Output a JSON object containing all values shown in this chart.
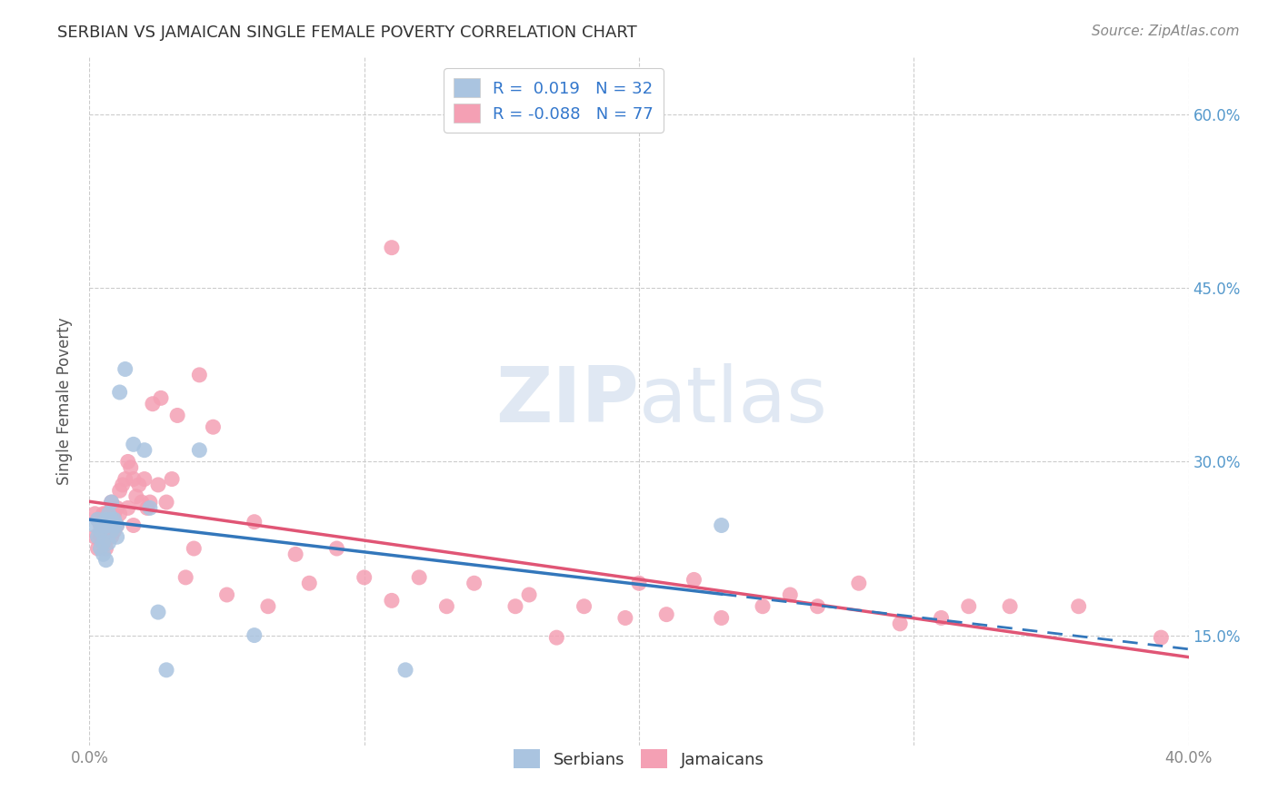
{
  "title": "SERBIAN VS JAMAICAN SINGLE FEMALE POVERTY CORRELATION CHART",
  "source": "Source: ZipAtlas.com",
  "ylabel": "Single Female Poverty",
  "ytick_values": [
    0.15,
    0.3,
    0.45,
    0.6
  ],
  "ytick_labels": [
    "15.0%",
    "30.0%",
    "45.0%",
    "60.0%"
  ],
  "xlim": [
    0.0,
    0.4
  ],
  "ylim": [
    0.055,
    0.65
  ],
  "watermark": "ZIPatlas",
  "legend_r1": "R =  0.019",
  "legend_n1": "N = 32",
  "legend_r2": "R = -0.088",
  "legend_n2": "N = 77",
  "serbian_color": "#aac4e0",
  "jamaican_color": "#f4a0b4",
  "serbian_line_color": "#3377bb",
  "jamaican_line_color": "#e05575",
  "background_color": "#ffffff",
  "grid_color": "#cccccc",
  "serbian_x": [
    0.002,
    0.003,
    0.003,
    0.004,
    0.004,
    0.005,
    0.005,
    0.005,
    0.006,
    0.006,
    0.006,
    0.007,
    0.007,
    0.007,
    0.008,
    0.008,
    0.008,
    0.009,
    0.009,
    0.01,
    0.01,
    0.011,
    0.013,
    0.016,
    0.02,
    0.022,
    0.025,
    0.028,
    0.04,
    0.06,
    0.115,
    0.23
  ],
  "serbian_y": [
    0.245,
    0.25,
    0.235,
    0.24,
    0.225,
    0.245,
    0.23,
    0.22,
    0.25,
    0.245,
    0.215,
    0.255,
    0.245,
    0.23,
    0.265,
    0.25,
    0.24,
    0.25,
    0.245,
    0.245,
    0.235,
    0.36,
    0.38,
    0.315,
    0.31,
    0.26,
    0.17,
    0.12,
    0.31,
    0.15,
    0.12,
    0.245
  ],
  "jamaican_x": [
    0.002,
    0.002,
    0.003,
    0.003,
    0.004,
    0.004,
    0.005,
    0.005,
    0.005,
    0.006,
    0.006,
    0.006,
    0.007,
    0.007,
    0.008,
    0.008,
    0.008,
    0.009,
    0.009,
    0.01,
    0.01,
    0.011,
    0.011,
    0.012,
    0.013,
    0.014,
    0.014,
    0.015,
    0.016,
    0.016,
    0.017,
    0.018,
    0.019,
    0.02,
    0.021,
    0.022,
    0.023,
    0.025,
    0.026,
    0.028,
    0.03,
    0.032,
    0.035,
    0.038,
    0.04,
    0.045,
    0.05,
    0.06,
    0.065,
    0.075,
    0.08,
    0.09,
    0.1,
    0.11,
    0.11,
    0.12,
    0.13,
    0.14,
    0.155,
    0.16,
    0.17,
    0.18,
    0.195,
    0.2,
    0.21,
    0.22,
    0.23,
    0.245,
    0.255,
    0.265,
    0.28,
    0.295,
    0.31,
    0.32,
    0.335,
    0.36,
    0.39
  ],
  "jamaican_y": [
    0.255,
    0.235,
    0.25,
    0.225,
    0.245,
    0.235,
    0.255,
    0.245,
    0.23,
    0.255,
    0.24,
    0.225,
    0.255,
    0.24,
    0.265,
    0.25,
    0.235,
    0.255,
    0.24,
    0.26,
    0.245,
    0.275,
    0.255,
    0.28,
    0.285,
    0.3,
    0.26,
    0.295,
    0.285,
    0.245,
    0.27,
    0.28,
    0.265,
    0.285,
    0.26,
    0.265,
    0.35,
    0.28,
    0.355,
    0.265,
    0.285,
    0.34,
    0.2,
    0.225,
    0.375,
    0.33,
    0.185,
    0.248,
    0.175,
    0.22,
    0.195,
    0.225,
    0.2,
    0.485,
    0.18,
    0.2,
    0.175,
    0.195,
    0.175,
    0.185,
    0.148,
    0.175,
    0.165,
    0.195,
    0.168,
    0.198,
    0.165,
    0.175,
    0.185,
    0.175,
    0.195,
    0.16,
    0.165,
    0.175,
    0.175,
    0.175,
    0.148
  ]
}
